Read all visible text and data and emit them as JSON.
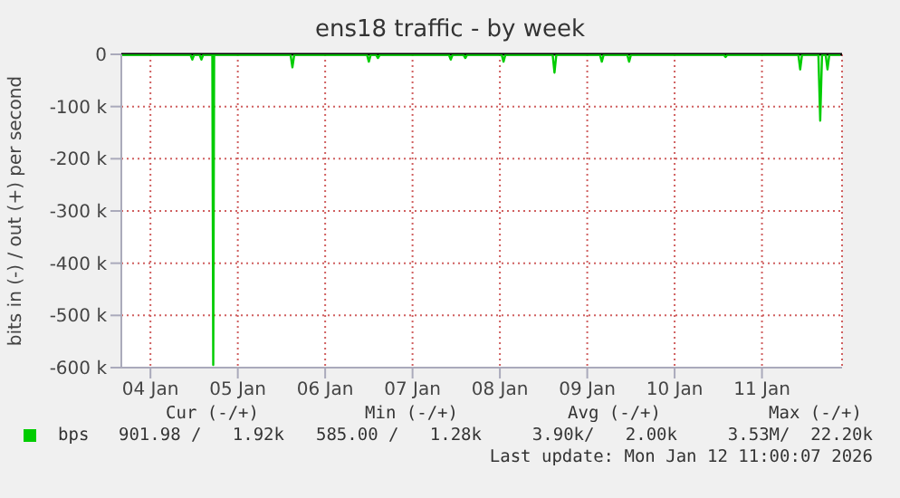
{
  "chart_data": {
    "type": "line",
    "title": "ens18 traffic - by week",
    "ylabel": "bits in (-) / out (+) per second",
    "x": [
      "2026-01-04T04:00",
      "2026-01-04T23:00",
      "2026-01-04T23:30",
      "2026-01-05T00:00",
      "2026-01-05T01:30",
      "2026-01-05T02:00",
      "2026-01-05T02:30",
      "2026-01-05T05:00",
      "2026-01-05T05:15",
      "2026-01-05T05:30",
      "2026-01-06T02:30",
      "2026-01-06T03:00",
      "2026-01-06T03:30",
      "2026-01-06T23:30",
      "2026-01-07T00:00",
      "2026-01-07T00:30",
      "2026-01-07T02:00",
      "2026-01-07T02:30",
      "2026-01-07T03:00",
      "2026-01-07T22:00",
      "2026-01-07T22:30",
      "2026-01-07T23:00",
      "2026-01-08T02:00",
      "2026-01-08T02:30",
      "2026-01-08T03:00",
      "2026-01-08T12:30",
      "2026-01-08T13:00",
      "2026-01-08T13:30",
      "2026-01-09T02:30",
      "2026-01-09T03:00",
      "2026-01-09T03:30",
      "2026-01-09T15:30",
      "2026-01-09T16:00",
      "2026-01-09T16:30",
      "2026-01-09T23:00",
      "2026-01-09T23:30",
      "2026-01-10T00:00",
      "2026-01-11T01:30",
      "2026-01-11T02:00",
      "2026-01-11T02:30",
      "2026-01-11T22:00",
      "2026-01-11T22:30",
      "2026-01-11T23:00",
      "2026-01-12T03:30",
      "2026-01-12T04:00",
      "2026-01-12T04:30",
      "2026-01-12T05:30",
      "2026-01-12T06:00",
      "2026-01-12T06:30",
      "2026-01-12T09:30"
    ],
    "series": [
      {
        "name": "bps",
        "color": "#00cc00",
        "values": [
          -1000,
          -1000,
          -10000,
          -1000,
          -1000,
          -10000,
          -1000,
          -1000,
          -595000,
          -1000,
          -1000,
          -25000,
          -1000,
          -1000,
          -14000,
          -1000,
          -1000,
          -7000,
          -1000,
          -1000,
          -10000,
          -1000,
          -1000,
          -7000,
          -1000,
          -1000,
          -14000,
          -1000,
          -1000,
          -35000,
          -1000,
          -1000,
          -14000,
          -1000,
          -1000,
          -14000,
          -1000,
          -1000,
          -5000,
          -1000,
          -1000,
          -29000,
          -1000,
          -1000,
          -127000,
          -1000,
          -1000,
          -29000,
          -1000,
          -1000
        ]
      }
    ],
    "xlim": [
      "2026-01-04T04:00",
      "2026-01-12T10:00"
    ],
    "xticks": [
      {
        "value": "2026-01-04T12:00",
        "label": "04 Jan"
      },
      {
        "value": "2026-01-05T12:00",
        "label": "05 Jan"
      },
      {
        "value": "2026-01-06T12:00",
        "label": "06 Jan"
      },
      {
        "value": "2026-01-07T12:00",
        "label": "07 Jan"
      },
      {
        "value": "2026-01-08T12:00",
        "label": "08 Jan"
      },
      {
        "value": "2026-01-09T12:00",
        "label": "09 Jan"
      },
      {
        "value": "2026-01-10T12:00",
        "label": "10 Jan"
      },
      {
        "value": "2026-01-11T12:00",
        "label": "11 Jan"
      }
    ],
    "ylim": [
      -600000,
      0
    ],
    "yticks": [
      0,
      {
        "value": -100000,
        "label": "-100 k"
      },
      {
        "value": -200000,
        "label": "-200 k"
      },
      {
        "value": -300000,
        "label": "-300 k"
      },
      {
        "value": -400000,
        "label": "-400 k"
      },
      {
        "value": -500000,
        "label": "-500 k"
      },
      {
        "value": -600000,
        "label": "-600 k"
      }
    ],
    "ref_lines": [
      {
        "axis": "y",
        "value": 0,
        "color": "#000000"
      }
    ],
    "grid": true,
    "legend": "bottom",
    "marker": "none",
    "line_style": "solid",
    "annotations": [
      "Cur (-/+)",
      "Min (-/+)",
      "Avg (-/+)",
      "Max (-/+)",
      "901.98 /   1.92k",
      "585.00 /   1.28k",
      "3.90k/   2.00k",
      "3.53M/  22.20k",
      "Last update: Mon Jan 12 11:00:07 2026"
    ]
  }
}
